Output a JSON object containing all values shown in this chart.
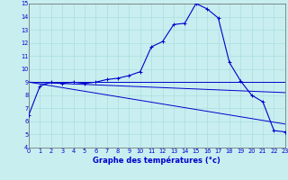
{
  "xlabel": "Graphe des températures (°c)",
  "background_color": "#c8eef0",
  "grid_color": "#aadddd",
  "line_color": "#0000cc",
  "hours": [
    0,
    1,
    2,
    3,
    4,
    5,
    6,
    7,
    8,
    9,
    10,
    11,
    12,
    13,
    14,
    15,
    16,
    17,
    18,
    19,
    20,
    21,
    22,
    23
  ],
  "temps": [
    6.5,
    8.7,
    9.0,
    8.9,
    9.0,
    8.9,
    9.0,
    9.2,
    9.3,
    9.5,
    9.8,
    11.7,
    12.1,
    13.4,
    13.5,
    15.0,
    14.6,
    13.9,
    10.5,
    9.1,
    8.0,
    7.5,
    5.3,
    5.2
  ],
  "trend1_y": [
    9.0,
    9.0
  ],
  "trend2_y": [
    9.0,
    8.2
  ],
  "trend3_y": [
    9.0,
    5.8
  ],
  "ylim": [
    4,
    15
  ],
  "xlim": [
    0,
    23
  ],
  "yticks": [
    4,
    5,
    6,
    7,
    8,
    9,
    10,
    11,
    12,
    13,
    14,
    15
  ],
  "xlabel_fontsize": 6.0,
  "tick_fontsize": 4.8
}
